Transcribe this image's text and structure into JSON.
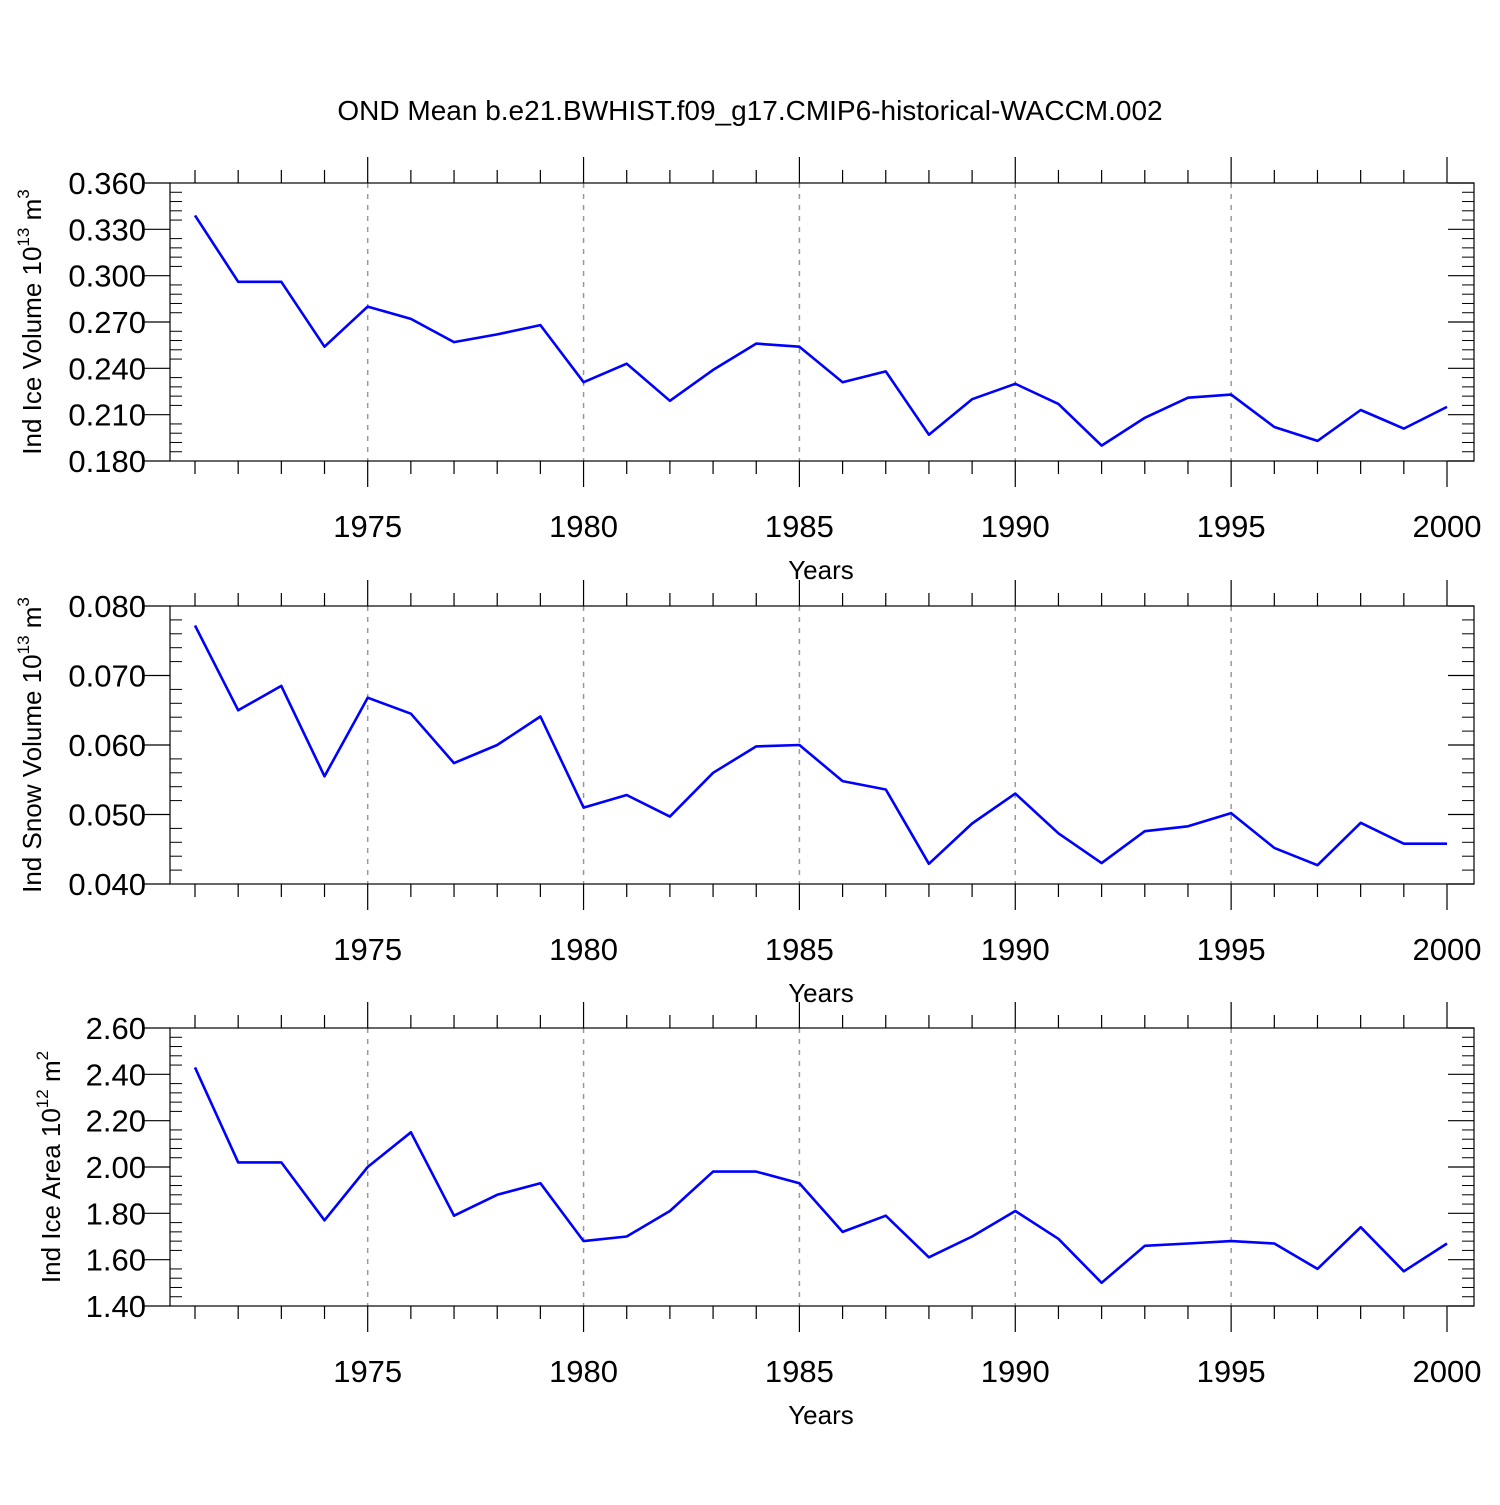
{
  "figure": {
    "title": "OND Mean b.e21.BWHIST.f09_g17.CMIP6-historical-WACCM.002",
    "line_color": "#0000ff",
    "grid_color": "#999999"
  },
  "chart_data": [
    {
      "type": "line",
      "ylabel": "Ind Ice Volume 10",
      "ylabel_exp": "13",
      "ylabel_unit": " m",
      "ylabel_unit_exp": "3",
      "xlabel": "Years",
      "xlim": [
        1971,
        2000
      ],
      "ylim": [
        0.18,
        0.36
      ],
      "yticks": [
        0.18,
        0.21,
        0.24,
        0.27,
        0.3,
        0.33,
        0.36
      ],
      "ytick_labels": [
        "0.180",
        "0.210",
        "0.240",
        "0.270",
        "0.300",
        "0.330",
        "0.360"
      ],
      "xticks": [
        1975,
        1980,
        1985,
        1990,
        1995,
        2000
      ],
      "xtick_labels": [
        "1975",
        "1980",
        "1985",
        "1990",
        "1995",
        "2000"
      ],
      "grid": "vertical dashed at labeled years",
      "x": [
        1971,
        1972,
        1973,
        1974,
        1975,
        1976,
        1977,
        1978,
        1979,
        1980,
        1981,
        1982,
        1983,
        1984,
        1985,
        1986,
        1987,
        1988,
        1989,
        1990,
        1991,
        1992,
        1993,
        1994,
        1995,
        1996,
        1997,
        1998,
        1999,
        2000
      ],
      "y": [
        0.339,
        0.296,
        0.296,
        0.254,
        0.28,
        0.272,
        0.257,
        0.262,
        0.268,
        0.231,
        0.243,
        0.219,
        0.239,
        0.256,
        0.254,
        0.231,
        0.238,
        0.197,
        0.22,
        0.23,
        0.217,
        0.19,
        0.208,
        0.221,
        0.223,
        0.202,
        0.193,
        0.213,
        0.201,
        0.215
      ]
    },
    {
      "type": "line",
      "ylabel": "Ind Snow Volume 10",
      "ylabel_exp": "13",
      "ylabel_unit": " m",
      "ylabel_unit_exp": "3",
      "xlabel": "Years",
      "xlim": [
        1971,
        2000
      ],
      "ylim": [
        0.04,
        0.08
      ],
      "yticks": [
        0.04,
        0.05,
        0.06,
        0.07,
        0.08
      ],
      "ytick_labels": [
        "0.040",
        "0.050",
        "0.060",
        "0.070",
        "0.080"
      ],
      "xticks": [
        1975,
        1980,
        1985,
        1990,
        1995,
        2000
      ],
      "xtick_labels": [
        "1975",
        "1980",
        "1985",
        "1990",
        "1995",
        "2000"
      ],
      "grid": "vertical dashed at labeled years",
      "x": [
        1971,
        1972,
        1973,
        1974,
        1975,
        1976,
        1977,
        1978,
        1979,
        1980,
        1981,
        1982,
        1983,
        1984,
        1985,
        1986,
        1987,
        1988,
        1989,
        1990,
        1991,
        1992,
        1993,
        1994,
        1995,
        1996,
        1997,
        1998,
        1999,
        2000
      ],
      "y": [
        0.0772,
        0.065,
        0.0685,
        0.0555,
        0.0668,
        0.0645,
        0.0574,
        0.06,
        0.0641,
        0.051,
        0.0528,
        0.0497,
        0.056,
        0.0598,
        0.06,
        0.0548,
        0.0536,
        0.0429,
        0.0487,
        0.053,
        0.0473,
        0.043,
        0.0476,
        0.0483,
        0.0502,
        0.0452,
        0.0427,
        0.0488,
        0.0458,
        0.0458
      ]
    },
    {
      "type": "line",
      "ylabel": "Ind Ice Area 10",
      "ylabel_exp": "12",
      "ylabel_unit": " m",
      "ylabel_unit_exp": "2",
      "xlabel": "Years",
      "xlim": [
        1971,
        2000
      ],
      "ylim": [
        1.4,
        2.6
      ],
      "yticks": [
        1.4,
        1.6,
        1.8,
        2.0,
        2.2,
        2.4,
        2.6
      ],
      "ytick_labels": [
        "1.40",
        "1.60",
        "1.80",
        "2.00",
        "2.20",
        "2.40",
        "2.60"
      ],
      "xticks": [
        1975,
        1980,
        1985,
        1990,
        1995,
        2000
      ],
      "xtick_labels": [
        "1975",
        "1980",
        "1985",
        "1990",
        "1995",
        "2000"
      ],
      "grid": "vertical dashed at labeled years",
      "x": [
        1971,
        1972,
        1973,
        1974,
        1975,
        1976,
        1977,
        1978,
        1979,
        1980,
        1981,
        1982,
        1983,
        1984,
        1985,
        1986,
        1987,
        1988,
        1989,
        1990,
        1991,
        1992,
        1993,
        1994,
        1995,
        1996,
        1997,
        1998,
        1999,
        2000
      ],
      "y": [
        2.43,
        2.02,
        2.02,
        1.77,
        2.0,
        2.15,
        1.79,
        1.88,
        1.93,
        1.68,
        1.7,
        1.81,
        1.98,
        1.98,
        1.93,
        1.72,
        1.79,
        1.61,
        1.7,
        1.81,
        1.69,
        1.5,
        1.66,
        1.67,
        1.68,
        1.67,
        1.56,
        1.74,
        1.55,
        1.67
      ]
    }
  ]
}
